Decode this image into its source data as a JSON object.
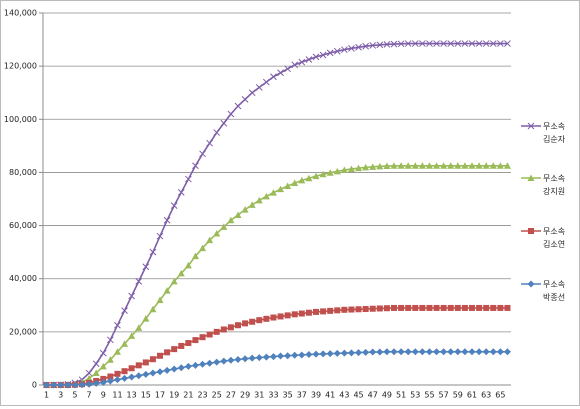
{
  "chart_data": {
    "type": "line",
    "categories": [
      1,
      null,
      3,
      null,
      5,
      null,
      7,
      null,
      9,
      null,
      11,
      null,
      13,
      null,
      15,
      null,
      17,
      null,
      19,
      null,
      21,
      null,
      23,
      null,
      25,
      null,
      27,
      null,
      29,
      null,
      31,
      null,
      33,
      null,
      35,
      null,
      37,
      null,
      39,
      null,
      41,
      null,
      43,
      null,
      45,
      null,
      47,
      null,
      49,
      null,
      51,
      null,
      53,
      null,
      55,
      null,
      57,
      null,
      59,
      null,
      61,
      null,
      63,
      null,
      65,
      null
    ],
    "ylim": [
      0,
      140000
    ],
    "yticks": [
      0,
      {
        "value": 20000,
        "label": "20,000"
      },
      {
        "value": 40000,
        "label": "40,000"
      },
      {
        "value": 60000,
        "label": "60,000"
      },
      {
        "value": 80000,
        "label": "80,000"
      },
      {
        "value": 100000,
        "label": "100,000"
      },
      {
        "value": 120000,
        "label": "120,000"
      },
      {
        "value": 140000,
        "label": "140,000"
      }
    ],
    "grid": true,
    "legend": "right",
    "series": [
      {
        "name": "무소속\n김순자",
        "color": "#7e5ea8",
        "marker": "x",
        "values": [
          0,
          0,
          100,
          300,
          800,
          2000,
          4500,
          8000,
          12000,
          17000,
          22500,
          28000,
          33500,
          39000,
          44500,
          50000,
          56000,
          62000,
          67500,
          72500,
          77500,
          82500,
          87000,
          91000,
          95000,
          98500,
          102000,
          105000,
          107500,
          110000,
          112000,
          114000,
          116000,
          117500,
          119000,
          120500,
          121500,
          122500,
          123500,
          124200,
          125000,
          125600,
          126200,
          126700,
          127100,
          127500,
          127800,
          128000,
          128200,
          128300,
          128400,
          128500,
          128500,
          128500,
          128500,
          128500,
          128500,
          128500,
          128500,
          128500,
          128500,
          128500,
          128500,
          128500,
          128500,
          128500
        ]
      },
      {
        "name": "무소속\n강지원",
        "color": "#9bbb59",
        "marker": "triangle",
        "values": [
          0,
          0,
          0,
          100,
          300,
          1000,
          2500,
          4500,
          7000,
          9500,
          12500,
          15500,
          18500,
          21500,
          25000,
          28500,
          32000,
          35500,
          39000,
          42000,
          45000,
          48500,
          51500,
          54500,
          57000,
          59500,
          62000,
          64000,
          66000,
          67800,
          69500,
          71000,
          72400,
          73700,
          74900,
          76000,
          77000,
          77800,
          78600,
          79300,
          79900,
          80400,
          80900,
          81300,
          81600,
          81900,
          82100,
          82300,
          82400,
          82500,
          82500,
          82500,
          82500,
          82500,
          82500,
          82500,
          82500,
          82500,
          82500,
          82500,
          82500,
          82500,
          82500,
          82500,
          82500,
          82500
        ]
      },
      {
        "name": "무소속\n김소연",
        "color": "#c0504d",
        "marker": "square",
        "values": [
          0,
          0,
          0,
          0,
          100,
          300,
          800,
          1500,
          2300,
          3200,
          4200,
          5200,
          6300,
          7400,
          8500,
          9700,
          11000,
          12300,
          13500,
          14700,
          15800,
          16900,
          18000,
          19000,
          20000,
          20900,
          21700,
          22500,
          23200,
          23800,
          24400,
          24900,
          25400,
          25800,
          26200,
          26600,
          26900,
          27200,
          27500,
          27700,
          27900,
          28100,
          28300,
          28400,
          28500,
          28600,
          28700,
          28800,
          28900,
          29000,
          29000,
          29000,
          29000,
          29000,
          29000,
          29000,
          29000,
          29000,
          29000,
          29000,
          29000,
          29000,
          29000,
          29000,
          29000,
          29000
        ]
      },
      {
        "name": "무소속\n박종선",
        "color": "#4f81bd",
        "marker": "diamond",
        "values": [
          0,
          0,
          0,
          0,
          0,
          100,
          300,
          600,
          1000,
          1500,
          2000,
          2500,
          3000,
          3500,
          4000,
          4500,
          5000,
          5500,
          6000,
          6500,
          7000,
          7400,
          7800,
          8200,
          8600,
          9000,
          9300,
          9600,
          9900,
          10100,
          10300,
          10500,
          10700,
          10900,
          11000,
          11200,
          11300,
          11500,
          11600,
          11700,
          11800,
          11900,
          12000,
          12100,
          12200,
          12300,
          12400,
          12400,
          12500,
          12500,
          12500,
          12500,
          12500,
          12500,
          12500,
          12500,
          12500,
          12500,
          12500,
          12500,
          12500,
          12500,
          12500,
          12500,
          12500,
          12500
        ]
      }
    ]
  }
}
